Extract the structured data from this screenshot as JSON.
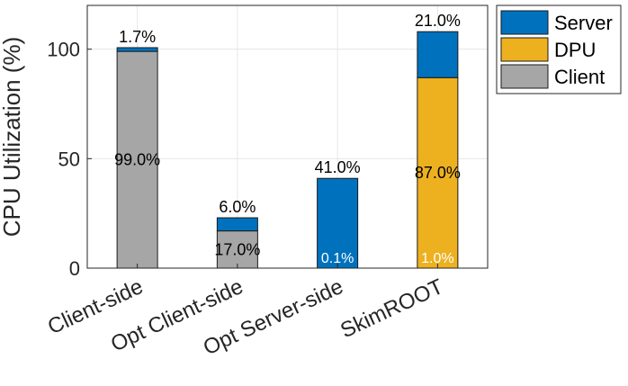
{
  "chart_data": {
    "type": "bar",
    "stacked": true,
    "title": "",
    "xlabel": "",
    "ylabel": "CPU Utilization (%)",
    "ylim": [
      0,
      120
    ],
    "yticks": [
      0,
      50,
      100
    ],
    "grid": true,
    "legend_position": "outside-top-right",
    "categories": [
      "Client-side",
      "Opt Client-side",
      "Opt Server-side",
      "SkimROOT"
    ],
    "series": [
      {
        "name": "Client",
        "color": "#A6A6A6",
        "values": [
          99.0,
          17.0,
          0,
          0
        ],
        "labels": [
          "99.0%",
          "17.0%",
          null,
          null
        ]
      },
      {
        "name": "DPU",
        "color": "#EDB120",
        "values": [
          0,
          0,
          0,
          87.0
        ],
        "labels": [
          null,
          null,
          null,
          "87.0%"
        ]
      },
      {
        "name": "Server",
        "color": "#0072BD",
        "values": [
          1.7,
          6.0,
          41.0,
          21.0
        ],
        "labels": [
          "1.7%",
          "6.0%",
          "41.0%",
          "21.0%"
        ]
      }
    ],
    "extra_labels": [
      {
        "category": "Opt Server-side",
        "text": "0.1%",
        "color": "white"
      },
      {
        "category": "SkimROOT",
        "text": "1.0%",
        "color": "white"
      }
    ],
    "legend_order": [
      "Server",
      "DPU",
      "Client"
    ]
  }
}
